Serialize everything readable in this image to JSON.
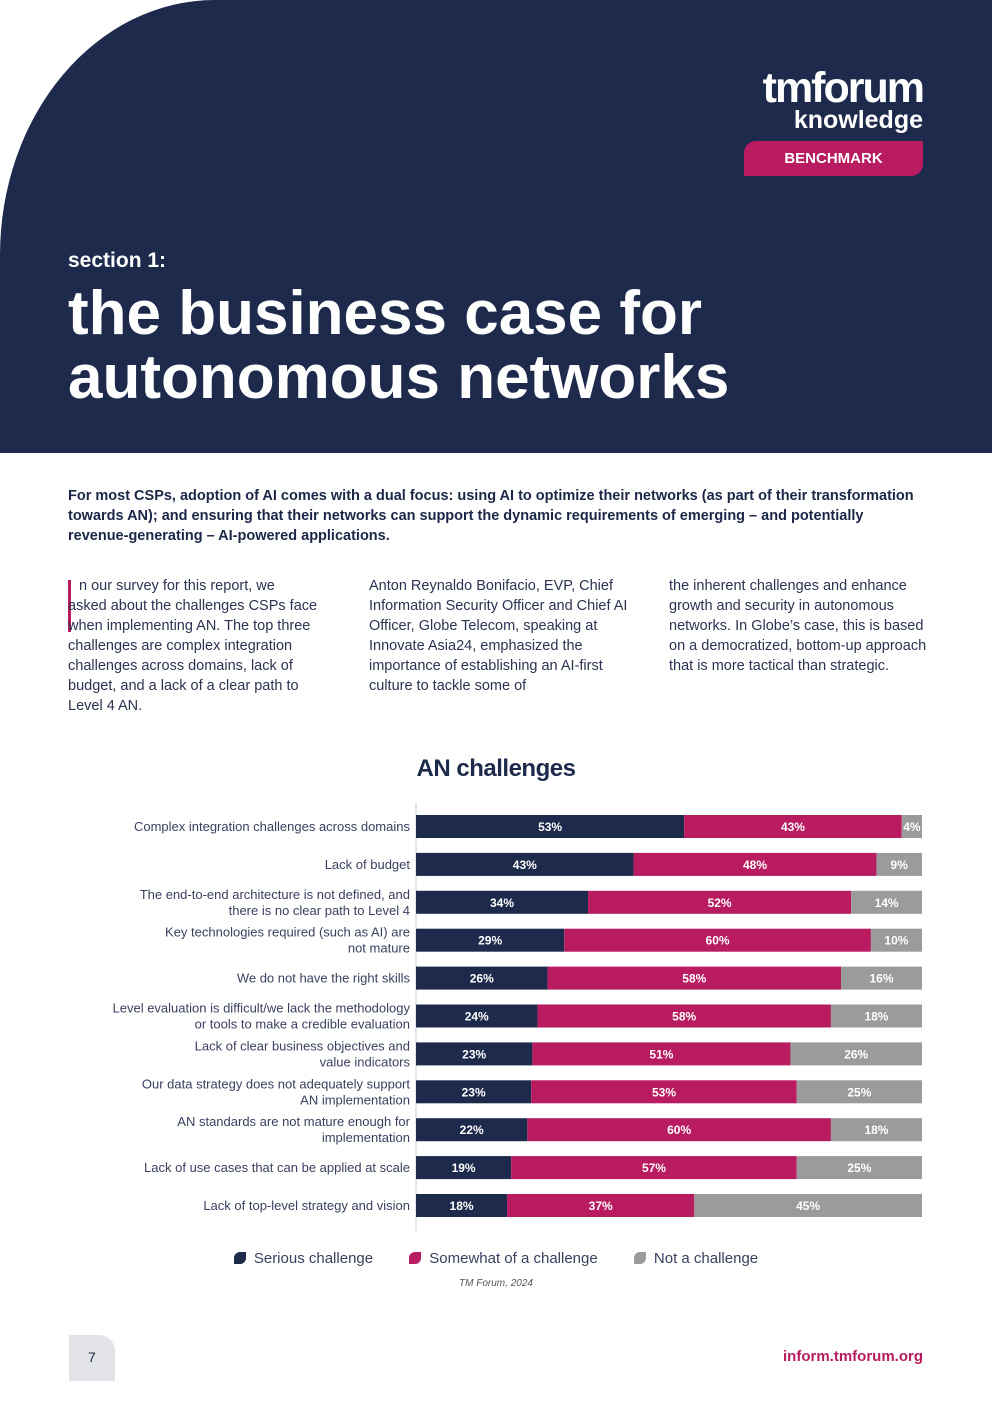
{
  "header": {
    "logo_main": "tmforum",
    "logo_sub": "knowledge",
    "badge": "BENCHMARK",
    "section_label": "section 1:",
    "title_line1": "the business case for",
    "title_line2": "autonomous networks"
  },
  "lede": "For most CSPs, adoption of AI comes with a dual focus: using AI to optimize their networks (as part of their transformation towards AN); and ensuring that their networks can support the dynamic requirements of emerging – and potentially revenue-generating – AI-powered applications.",
  "columns": {
    "col1_first": "n our survey for this report, we",
    "col1_rest": "asked about the challenges CSPs face when implementing AN. The top three challenges are complex integration challenges across domains, lack of budget, and a lack of a clear path to Level 4 AN.",
    "col2": "Anton Reynaldo Bonifacio, EVP, Chief Information Security Officer and Chief AI Officer, Globe Telecom, speaking at Innovate Asia24, emphasized the importance of establishing an AI-first culture to tackle some of",
    "col3": "the inherent challenges and enhance growth and security in autonomous networks. In Globe’s case, this is based on a democratized, bottom-up approach that is more tactical than strategic."
  },
  "chart_data": {
    "type": "bar",
    "orientation": "horizontal-stacked-percent",
    "title": "AN challenges",
    "categories": [
      [
        "Complex integration challenges across domains"
      ],
      [
        "Lack of budget"
      ],
      [
        "The end-to-end architecture is not defined, and",
        "there is no clear path to Level 4"
      ],
      [
        "Key technologies required (such as AI) are",
        "not mature"
      ],
      [
        "We do not have the right skills"
      ],
      [
        "Level evaluation is difficult/we lack the methodology",
        "or tools to make a credible evaluation"
      ],
      [
        "Lack of clear business objectives and",
        "value indicators"
      ],
      [
        "Our data strategy does not adequately support",
        "AN implementation"
      ],
      [
        "AN standards are not mature enough for",
        "implementation"
      ],
      [
        "Lack of use cases that can be applied at scale"
      ],
      [
        "Lack of top-level strategy and vision"
      ]
    ],
    "series": [
      {
        "name": "Serious challenge",
        "color": "#1d2a4b",
        "values": [
          53,
          43,
          34,
          29,
          26,
          24,
          23,
          23,
          22,
          19,
          18
        ]
      },
      {
        "name": "Somewhat of a challenge",
        "color": "#b81b5f",
        "values": [
          43,
          48,
          52,
          60,
          58,
          58,
          51,
          53,
          60,
          57,
          37
        ]
      },
      {
        "name": "Not a challenge",
        "color": "#9b9b9b",
        "values": [
          4,
          9,
          14,
          10,
          16,
          18,
          26,
          25,
          18,
          25,
          45
        ]
      }
    ],
    "unit": "%",
    "legend_position": "bottom",
    "source": "TM Forum, 2024"
  },
  "footer": {
    "page_number": "7",
    "site": "inform.tmforum.org"
  }
}
